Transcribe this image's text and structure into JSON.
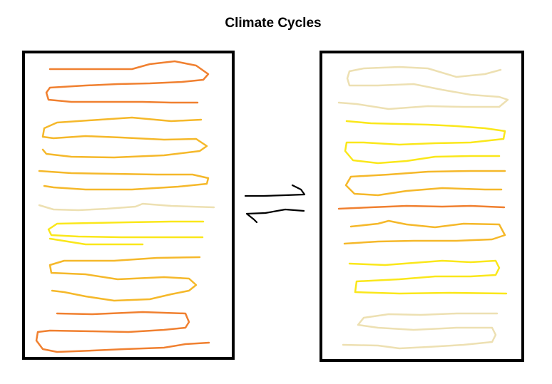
{
  "title": "Climate Cycles",
  "colors": {
    "dark_orange": "#f08030",
    "orange": "#f5b82a",
    "yellow": "#fae71a",
    "pale": "#ede0b2",
    "frame": "#000000",
    "arrows": "#000000"
  },
  "panels": [
    {
      "name": "left-panel",
      "layers_top_to_bottom": [
        "dark_orange",
        "orange",
        "orange",
        "pale",
        "yellow",
        "orange",
        "dark_orange"
      ]
    },
    {
      "name": "right-panel",
      "layers_top_to_bottom": [
        "pale",
        "yellow",
        "orange",
        "dark_orange",
        "orange",
        "yellow",
        "pale"
      ]
    }
  ],
  "arrows": {
    "icon": "equilibrium-arrows-icon"
  }
}
